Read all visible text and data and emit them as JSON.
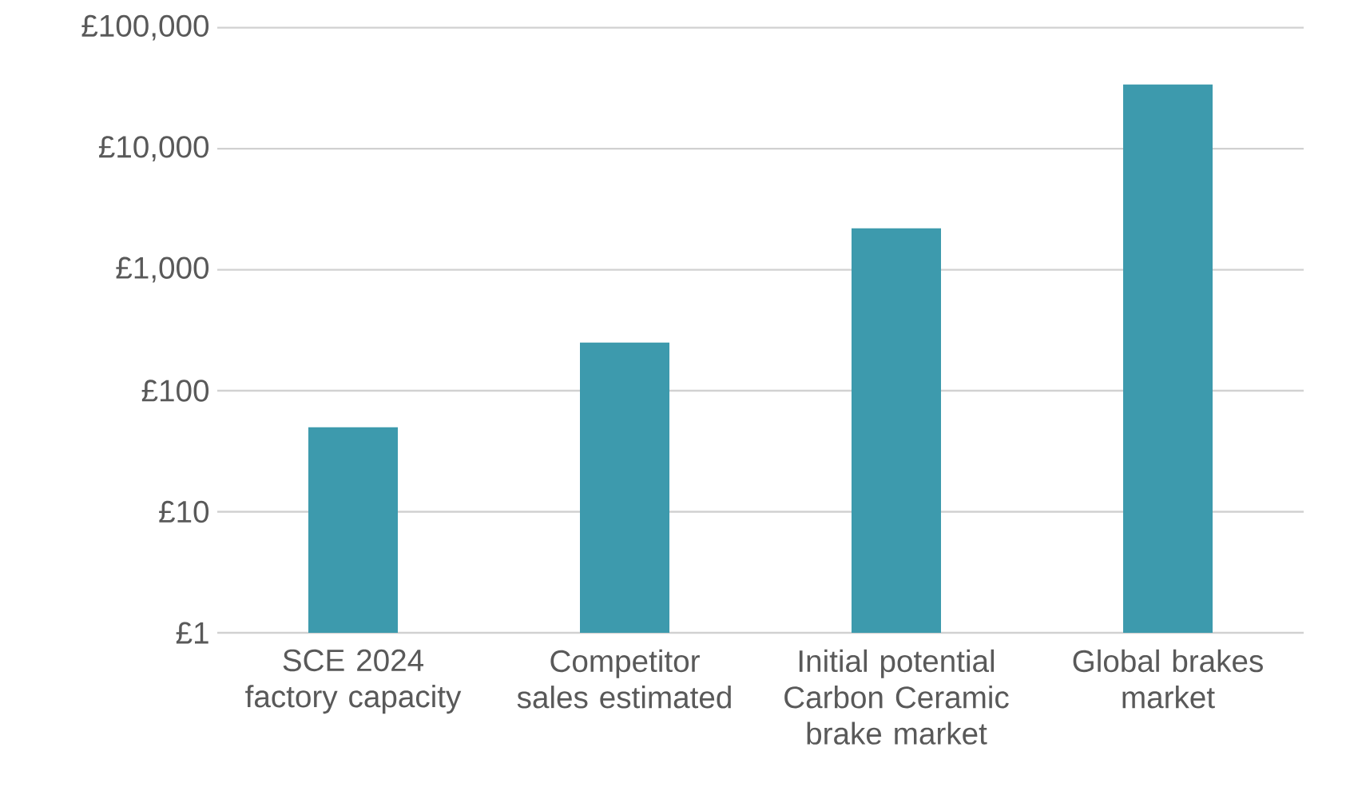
{
  "chart_data": {
    "type": "bar",
    "categories": [
      "SCE 2024 factory capacity",
      "Competitor sales estimated",
      "Initial potential Carbon Ceramic brake market",
      "Global brakes market"
    ],
    "values": [
      50,
      250,
      2200,
      34000
    ],
    "color": "#3d9aad",
    "log": "y",
    "grid": "y",
    "ylim": [
      1,
      100000
    ],
    "yticks": [
      {
        "value": 1,
        "label": "£1"
      },
      {
        "value": 10,
        "label": "£10"
      },
      {
        "value": 100,
        "label": "£100"
      },
      {
        "value": 1000,
        "label": "£1,000"
      },
      {
        "value": 10000,
        "label": "£10,000"
      },
      {
        "value": 100000,
        "label": "£100,000"
      }
    ]
  }
}
